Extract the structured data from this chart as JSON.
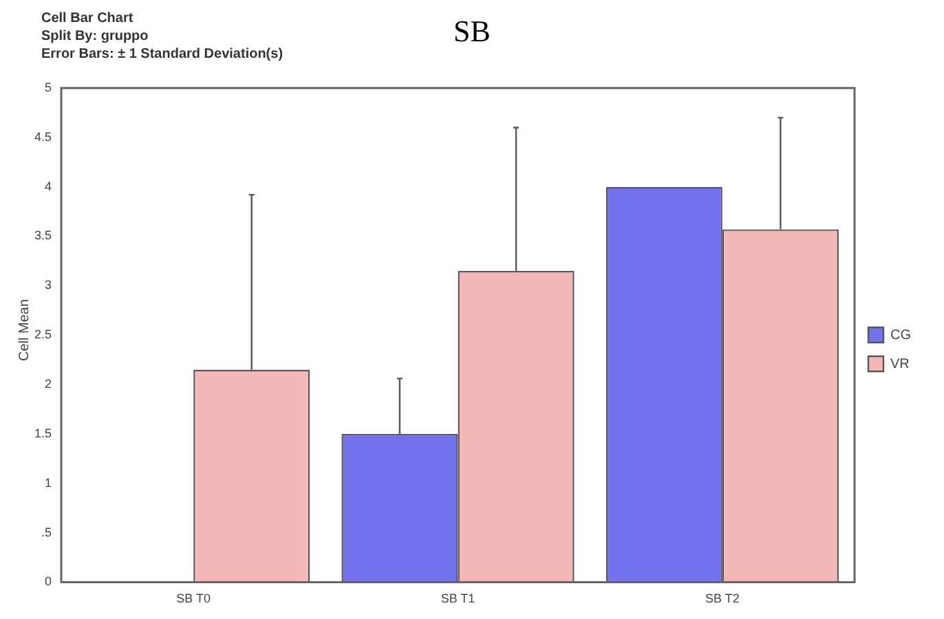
{
  "chart_data": {
    "type": "bar",
    "title": "SB",
    "annotations": [
      "Cell Bar Chart",
      "Split By: gruppo",
      "Error Bars: ± 1 Standard Deviation(s)"
    ],
    "ylabel": "Cell Mean",
    "categories": [
      "SB T0",
      "SB T1",
      "SB T2"
    ],
    "series": [
      {
        "name": "CG",
        "color": "#7272ee",
        "values": [
          null,
          1.5,
          4.0
        ],
        "errors": [
          null,
          [
            1.5,
            2.06
          ],
          null
        ]
      },
      {
        "name": "VR",
        "color": "#f5b8b8",
        "values": [
          2.15,
          3.15,
          3.57
        ],
        "errors": [
          [
            2.15,
            3.92
          ],
          [
            3.15,
            4.6
          ],
          [
            3.57,
            4.7
          ]
        ]
      }
    ],
    "ylim": [
      0,
      5
    ],
    "yticks": [
      0,
      {
        "value": 0.5,
        "label": ".5"
      },
      1,
      1.5,
      2,
      2.5,
      3,
      3.5,
      4,
      4.5,
      5
    ],
    "grid": false,
    "legend": "right"
  }
}
